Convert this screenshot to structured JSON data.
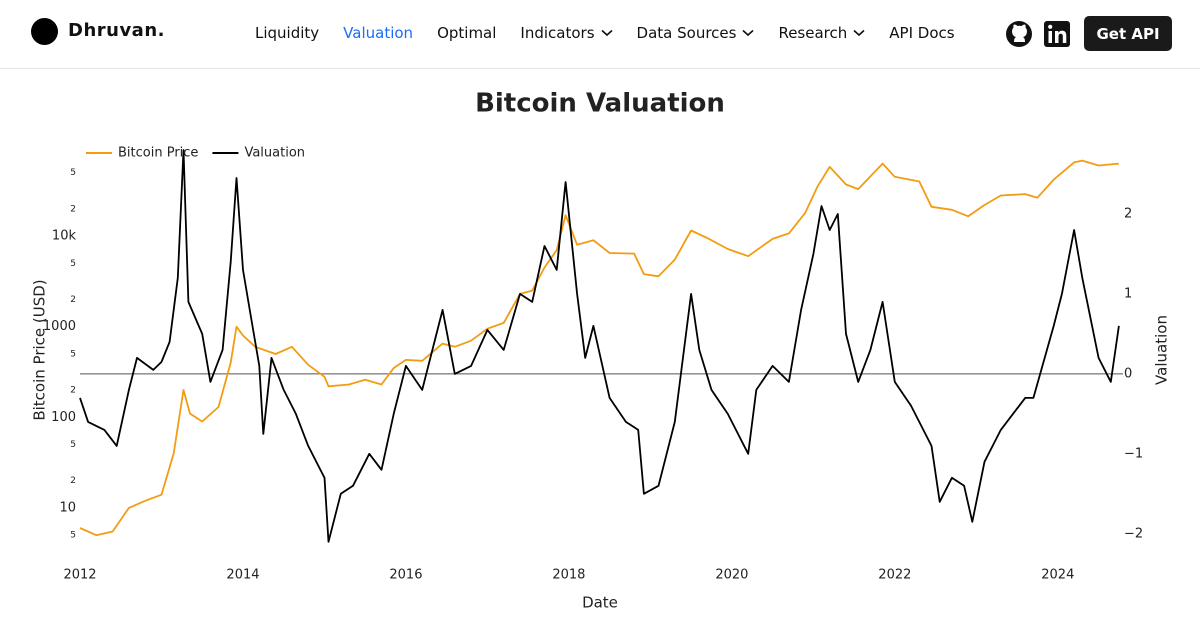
{
  "header": {
    "logo": "Dhruvan.",
    "links": [
      {
        "label": "Liquidity"
      },
      {
        "label": "Valuation",
        "active": true
      },
      {
        "label": "Optimal"
      },
      {
        "label": "Indicators",
        "dropdown": true
      },
      {
        "label": "Data Sources",
        "dropdown": true
      },
      {
        "label": "Research",
        "dropdown": true
      },
      {
        "label": "API Docs"
      }
    ],
    "button": "Get API"
  },
  "chart_data": {
    "type": "line",
    "title": "Bitcoin Valuation",
    "xlabel": "Date",
    "ylabel": "Bitcoin Price (USD)",
    "y2label": "Valuation",
    "log_scale_y": true,
    "legend": "top-left",
    "xlim": [
      2012,
      2024.8
    ],
    "xticks": [
      2012,
      2014,
      2016,
      2018,
      2020,
      2022,
      2024
    ],
    "ylim": [
      3.9,
      89000
    ],
    "yticks": [
      5,
      10,
      {
        "value": 20,
        "label": "2"
      },
      {
        "value": 50,
        "label": "5"
      },
      100,
      {
        "value": 200,
        "label": "2"
      },
      {
        "value": 500,
        "label": "5"
      },
      1000,
      {
        "value": 2000,
        "label": "2"
      },
      {
        "value": 5000,
        "label": "5"
      },
      {
        "value": 10000,
        "label": "10k"
      },
      {
        "value": 20000,
        "label": "2"
      },
      {
        "value": 50000,
        "label": "5"
      }
    ],
    "y2lim": [
      -2.14,
      2.8
    ],
    "y2ticks": [
      {
        "value": -2,
        "label": "−2"
      },
      {
        "value": -1,
        "label": "−1"
      },
      0,
      1,
      2
    ],
    "series": [
      {
        "name": "Bitcoin Price",
        "color": "#f39c12",
        "x": [
          2012.0,
          2012.2,
          2012.4,
          2012.6,
          2012.8,
          2013.0,
          2013.15,
          2013.27,
          2013.35,
          2013.5,
          2013.7,
          2013.85,
          2013.92,
          2014.0,
          2014.15,
          2014.4,
          2014.6,
          2014.8,
          2015.0,
          2015.05,
          2015.3,
          2015.5,
          2015.7,
          2015.85,
          2016.0,
          2016.2,
          2016.45,
          2016.6,
          2016.8,
          2017.0,
          2017.2,
          2017.4,
          2017.55,
          2017.7,
          2017.85,
          2017.96,
          2018.1,
          2018.3,
          2018.5,
          2018.8,
          2018.92,
          2019.1,
          2019.3,
          2019.5,
          2019.7,
          2019.95,
          2020.2,
          2020.5,
          2020.7,
          2020.9,
          2021.05,
          2021.2,
          2021.4,
          2021.55,
          2021.85,
          2022.0,
          2022.3,
          2022.45,
          2022.7,
          2022.9,
          2023.1,
          2023.3,
          2023.6,
          2023.75,
          2023.95,
          2024.2,
          2024.3,
          2024.5,
          2024.75
        ],
        "values": [
          6,
          5,
          5.5,
          10,
          12,
          14,
          40,
          200,
          110,
          90,
          130,
          400,
          1000,
          800,
          600,
          500,
          600,
          380,
          280,
          220,
          230,
          260,
          230,
          350,
          430,
          420,
          650,
          600,
          700,
          950,
          1100,
          2300,
          2500,
          4500,
          7000,
          17000,
          8000,
          9000,
          6500,
          6400,
          3800,
          3600,
          5500,
          11500,
          9500,
          7200,
          6000,
          9300,
          10700,
          18000,
          35000,
          58000,
          37000,
          33000,
          63000,
          45000,
          40000,
          21000,
          19500,
          16500,
          22000,
          28000,
          29000,
          26500,
          42000,
          65000,
          68000,
          60000,
          63000
        ]
      },
      {
        "name": "Valuation",
        "color": "#000000",
        "axis": "y2",
        "x": [
          2012.0,
          2012.1,
          2012.3,
          2012.45,
          2012.6,
          2012.7,
          2012.9,
          2013.0,
          2013.1,
          2013.2,
          2013.27,
          2013.33,
          2013.5,
          2013.6,
          2013.75,
          2013.85,
          2013.92,
          2014.0,
          2014.1,
          2014.2,
          2014.25,
          2014.35,
          2014.5,
          2014.65,
          2014.8,
          2015.0,
          2015.05,
          2015.2,
          2015.35,
          2015.55,
          2015.7,
          2015.85,
          2016.0,
          2016.2,
          2016.45,
          2016.6,
          2016.8,
          2017.0,
          2017.2,
          2017.4,
          2017.55,
          2017.7,
          2017.85,
          2017.96,
          2018.1,
          2018.2,
          2018.3,
          2018.5,
          2018.7,
          2018.85,
          2018.92,
          2019.1,
          2019.3,
          2019.5,
          2019.6,
          2019.75,
          2019.95,
          2020.2,
          2020.3,
          2020.5,
          2020.7,
          2020.85,
          2021.0,
          2021.1,
          2021.2,
          2021.3,
          2021.4,
          2021.55,
          2021.7,
          2021.85,
          2022.0,
          2022.2,
          2022.45,
          2022.55,
          2022.7,
          2022.85,
          2022.95,
          2023.1,
          2023.3,
          2023.6,
          2023.7,
          2023.95,
          2024.05,
          2024.2,
          2024.3,
          2024.5,
          2024.65,
          2024.75
        ],
        "values": [
          -0.3,
          -0.6,
          -0.7,
          -0.9,
          -0.2,
          0.2,
          0.05,
          0.15,
          0.4,
          1.2,
          2.8,
          0.9,
          0.5,
          -0.1,
          0.3,
          1.4,
          2.45,
          1.3,
          0.7,
          0.1,
          -0.75,
          0.2,
          -0.2,
          -0.5,
          -0.9,
          -1.3,
          -2.1,
          -1.5,
          -1.4,
          -1.0,
          -1.2,
          -0.5,
          0.1,
          -0.2,
          0.8,
          0.0,
          0.1,
          0.55,
          0.3,
          1.0,
          0.9,
          1.6,
          1.3,
          2.4,
          1.0,
          0.2,
          0.6,
          -0.3,
          -0.6,
          -0.7,
          -1.5,
          -1.4,
          -0.6,
          1.0,
          0.3,
          -0.2,
          -0.5,
          -1.0,
          -0.2,
          0.1,
          -0.1,
          0.8,
          1.5,
          2.1,
          1.8,
          2.0,
          0.5,
          -0.1,
          0.3,
          0.9,
          -0.1,
          -0.4,
          -0.9,
          -1.6,
          -1.3,
          -1.4,
          -1.85,
          -1.1,
          -0.7,
          -0.3,
          -0.3,
          0.6,
          1.0,
          1.8,
          1.2,
          0.2,
          -0.1,
          0.6
        ]
      }
    ]
  }
}
